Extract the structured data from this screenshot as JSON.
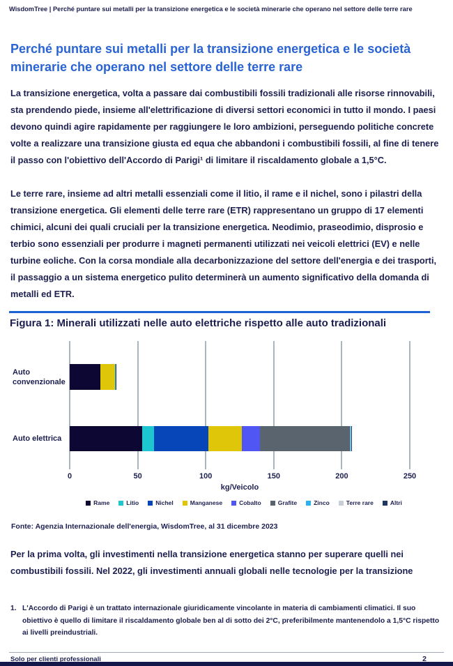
{
  "page": {
    "header": "WisdomTree | Perché puntare sui metalli per la transizione energetica e le società minerarie che operano nel settore delle terre rare",
    "title_lines": [
      "Perché puntare sui metalli per la transizione energetica e le società",
      "minerarie che operano nel settore delle terre rare"
    ],
    "paragraph1": "La transizione energetica, volta a passare dai combustibili fossili tradizionali alle risorse rinnovabili, sta prendendo piede, insieme all'elettrificazione di diversi settori economici in tutto il mondo. I paesi devono quindi agire rapidamente per raggiungere le loro ambizioni, perseguendo politiche concrete volte a realizzare una transizione giusta ed equa che abbandoni i combustibili fossili, al fine di tenere il passo con l'obiettivo dell'Accordo di Parigi¹ di limitare il riscaldamento globale a 1,5°C.",
    "paragraph2": "Le terre rare, insieme ad altri metalli essenziali come il litio, il rame e il nichel, sono i pilastri della transizione energetica. Gli elementi delle terre rare (ETR) rappresentano un gruppo di 17 elementi chimici, alcuni dei quali cruciali per la transizione energetica. Neodimio, praseodimio, disprosio e terbio sono essenziali per produrre i magneti permanenti utilizzati nei veicoli elettrici (EV) e nelle turbine eoliche. Con la corsa mondiale alla decarbonizzazione del settore dell'energia e dei trasporti, il passaggio a un sistema energetico pulito determinerà un aumento significativo della domanda di metalli ed ETR.",
    "source": "Fonte: Agenzia Internazionale dell'energia, WisdomTree, al 31 dicembre 2023",
    "paragraph3": "Per la prima volta, gli investimenti nella transizione energetica stanno per superare quelli nei combustibili fossili. Nel 2022, gli investimenti annuali globali nelle tecnologie per la transizione",
    "footnote_number": "1.",
    "footnote": "L'Accordo di Parigi è un trattato internazionale giuridicamente vincolante in materia di cambiamenti climatici. Il suo obiettivo è quello di limitare il riscaldamento globale ben al di sotto dei 2°C, preferibilmente mantenendolo a 1,5°C rispetto ai livelli preindustriali.",
    "footer_left": "Solo per clienti professionali",
    "page_number": "2"
  },
  "colors": {
    "text_navy": "#1c1f4f",
    "title_blue": "#2a63d3",
    "rule_blue": "#1e63d4",
    "gridline": "#a6b7c0",
    "bottom_bar": "#14174a"
  },
  "chart_data": {
    "type": "bar",
    "orientation": "horizontal",
    "stacked": true,
    "title": "Figura 1: Minerali utilizzati nelle auto elettriche rispetto alle auto tradizionali",
    "categories": [
      "Auto convenzionale",
      "Auto elettrica"
    ],
    "xlabel": "kg/Veicolo",
    "x_ticks": [
      0,
      50,
      100,
      150,
      200,
      250
    ],
    "xlim": [
      0,
      250
    ],
    "grid": "vertical",
    "legend_position": "bottom",
    "series": [
      {
        "name": "Rame",
        "color": "#0c0733",
        "values": [
          22.3,
          53.2
        ]
      },
      {
        "name": "Litio",
        "color": "#1cc7cf",
        "values": [
          0,
          8.9
        ]
      },
      {
        "name": "Nichel",
        "color": "#0646b8",
        "values": [
          0,
          39.9
        ]
      },
      {
        "name": "Manganese",
        "color": "#e0c608",
        "values": [
          11.2,
          24.5
        ]
      },
      {
        "name": "Cobalto",
        "color": "#4f56f4",
        "values": [
          0,
          13.3
        ]
      },
      {
        "name": "Grafite",
        "color": "#5a646e",
        "values": [
          0,
          66.3
        ]
      },
      {
        "name": "Zinco",
        "color": "#2ab2ee",
        "values": [
          0.1,
          0.1
        ]
      },
      {
        "name": "Terre rare",
        "color": "#c8ced5",
        "values": [
          0,
          0.5
        ]
      },
      {
        "name": "Altri",
        "color": "#1e3660",
        "values": [
          0.3,
          0.3
        ]
      }
    ]
  }
}
